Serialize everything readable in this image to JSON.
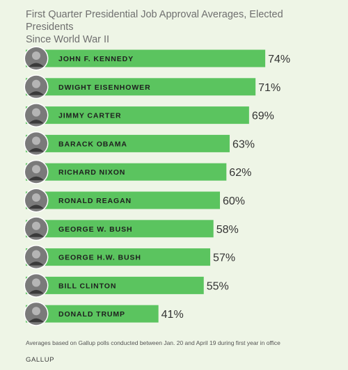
{
  "title": "First Quarter Presidential Job Approval Averages, Elected Presidents\nSince World War II",
  "footnote": "Averages based on Gallup polls conducted between Jan. 20 and April 19 during first year in office",
  "brand": "GALLUP",
  "colors": {
    "bar": "#5bc45f",
    "background": "#eef5e6",
    "avatar_ring": "#ffffff",
    "avatar_fill": "#7a7a7a"
  },
  "chart_data": {
    "type": "bar",
    "orientation": "horizontal",
    "title": "First Quarter Presidential Job Approval Averages, Elected Presidents Since World War II",
    "categories": [
      "JOHN F. KENNEDY",
      "DWIGHT EISENHOWER",
      "JIMMY CARTER",
      "BARACK OBAMA",
      "RICHARD NIXON",
      "RONALD REAGAN",
      "GEORGE W. BUSH",
      "GEORGE H.W. BUSH",
      "BILL CLINTON",
      "DONALD TRUMP"
    ],
    "values": [
      74,
      71,
      69,
      63,
      62,
      60,
      58,
      57,
      55,
      41
    ],
    "value_labels": [
      "74%",
      "71%",
      "69%",
      "63%",
      "62%",
      "60%",
      "58%",
      "57%",
      "55%",
      "41%"
    ],
    "unit": "%",
    "xlim": [
      0,
      100
    ],
    "grid": false,
    "legend": "none"
  }
}
